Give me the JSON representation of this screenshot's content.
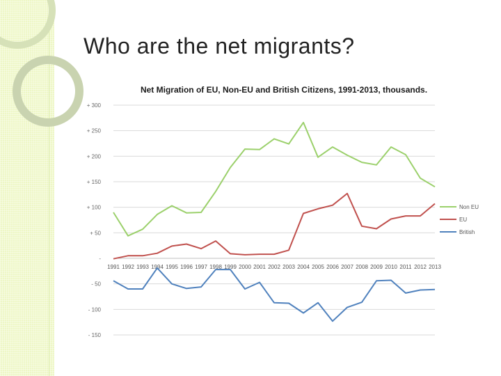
{
  "slide": {
    "title": "Who are the net migrants?"
  },
  "colors": {
    "strip": "#eef7c6",
    "ring": "#c9d3b0",
    "non_eu": "#9bd06b",
    "eu": "#c0504d",
    "british": "#4f81bd",
    "grid": "#d9d9d9"
  },
  "chart_data": {
    "type": "line",
    "title": "Net Migration of EU, Non-EU and British Citizens, 1991-2013, thousands.",
    "xlabel": "",
    "ylabel": "",
    "ylim": [
      -150,
      300
    ],
    "yticks": [
      300,
      250,
      200,
      150,
      100,
      50,
      0,
      -50,
      -100,
      -150
    ],
    "ytick_labels": [
      "+ 300",
      "+ 250",
      "+ 200",
      "+ 150",
      "+ 100",
      "+ 50",
      "-",
      "- 50",
      "- 100",
      "- 150"
    ],
    "grid": true,
    "legend": "right",
    "categories": [
      "1991",
      "1992",
      "1993",
      "1994",
      "1995",
      "1996",
      "1997",
      "1998",
      "1999",
      "2000",
      "2001",
      "2002",
      "2003",
      "2004",
      "2005",
      "2006",
      "2007",
      "2008",
      "2009",
      "2010",
      "2011",
      "2012",
      "2013"
    ],
    "series": [
      {
        "name": "Non EU",
        "color": "#9bd06b",
        "values": [
          90,
          44,
          57,
          86,
          103,
          89,
          90,
          131,
          178,
          214,
          213,
          234,
          224,
          266,
          198,
          218,
          202,
          188,
          183,
          218,
          203,
          157,
          140
        ]
      },
      {
        "name": "EU",
        "color": "#c0504d",
        "values": [
          -1,
          5,
          5,
          10,
          24,
          28,
          19,
          34,
          9,
          7,
          8,
          8,
          16,
          88,
          97,
          104,
          127,
          63,
          58,
          77,
          83,
          83,
          107
        ]
      },
      {
        "name": "British",
        "color": "#4f81bd",
        "values": [
          -44,
          -60,
          -60,
          -19,
          -50,
          -59,
          -56,
          -22,
          -22,
          -60,
          -47,
          -87,
          -88,
          -107,
          -87,
          -123,
          -96,
          -86,
          -44,
          -43,
          -68,
          -62,
          -61
        ]
      }
    ]
  }
}
